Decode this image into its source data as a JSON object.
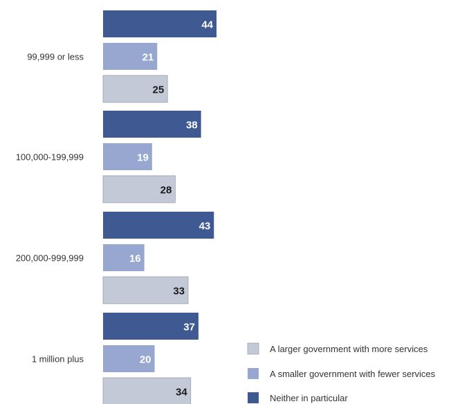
{
  "chart_data": {
    "type": "bar",
    "orientation": "horizontal",
    "title": "",
    "xlabel": "",
    "ylabel": "",
    "grid": false,
    "legend_position": "bottom-right",
    "categories": [
      "99,999 or less",
      "100,000-199,999",
      "200,000-999,999",
      "1 million plus"
    ],
    "series": [
      {
        "name": "Neither in particular",
        "values": [
          44,
          38,
          43,
          37
        ],
        "color": "#3f5a93",
        "label_color": "#ffffff"
      },
      {
        "name": "A smaller government with fewer services",
        "values": [
          21,
          19,
          16,
          20
        ],
        "color": "#97a7d0",
        "label_color": "#ffffff"
      },
      {
        "name": "A larger government with more services",
        "values": [
          25,
          28,
          33,
          34
        ],
        "color": "#c3c9d6",
        "label_color": "#1a1a1a"
      }
    ],
    "legend_order": [
      "A larger government with more services",
      "A smaller government with fewer services",
      "Neither in particular"
    ],
    "xlim": [
      0,
      44
    ]
  }
}
